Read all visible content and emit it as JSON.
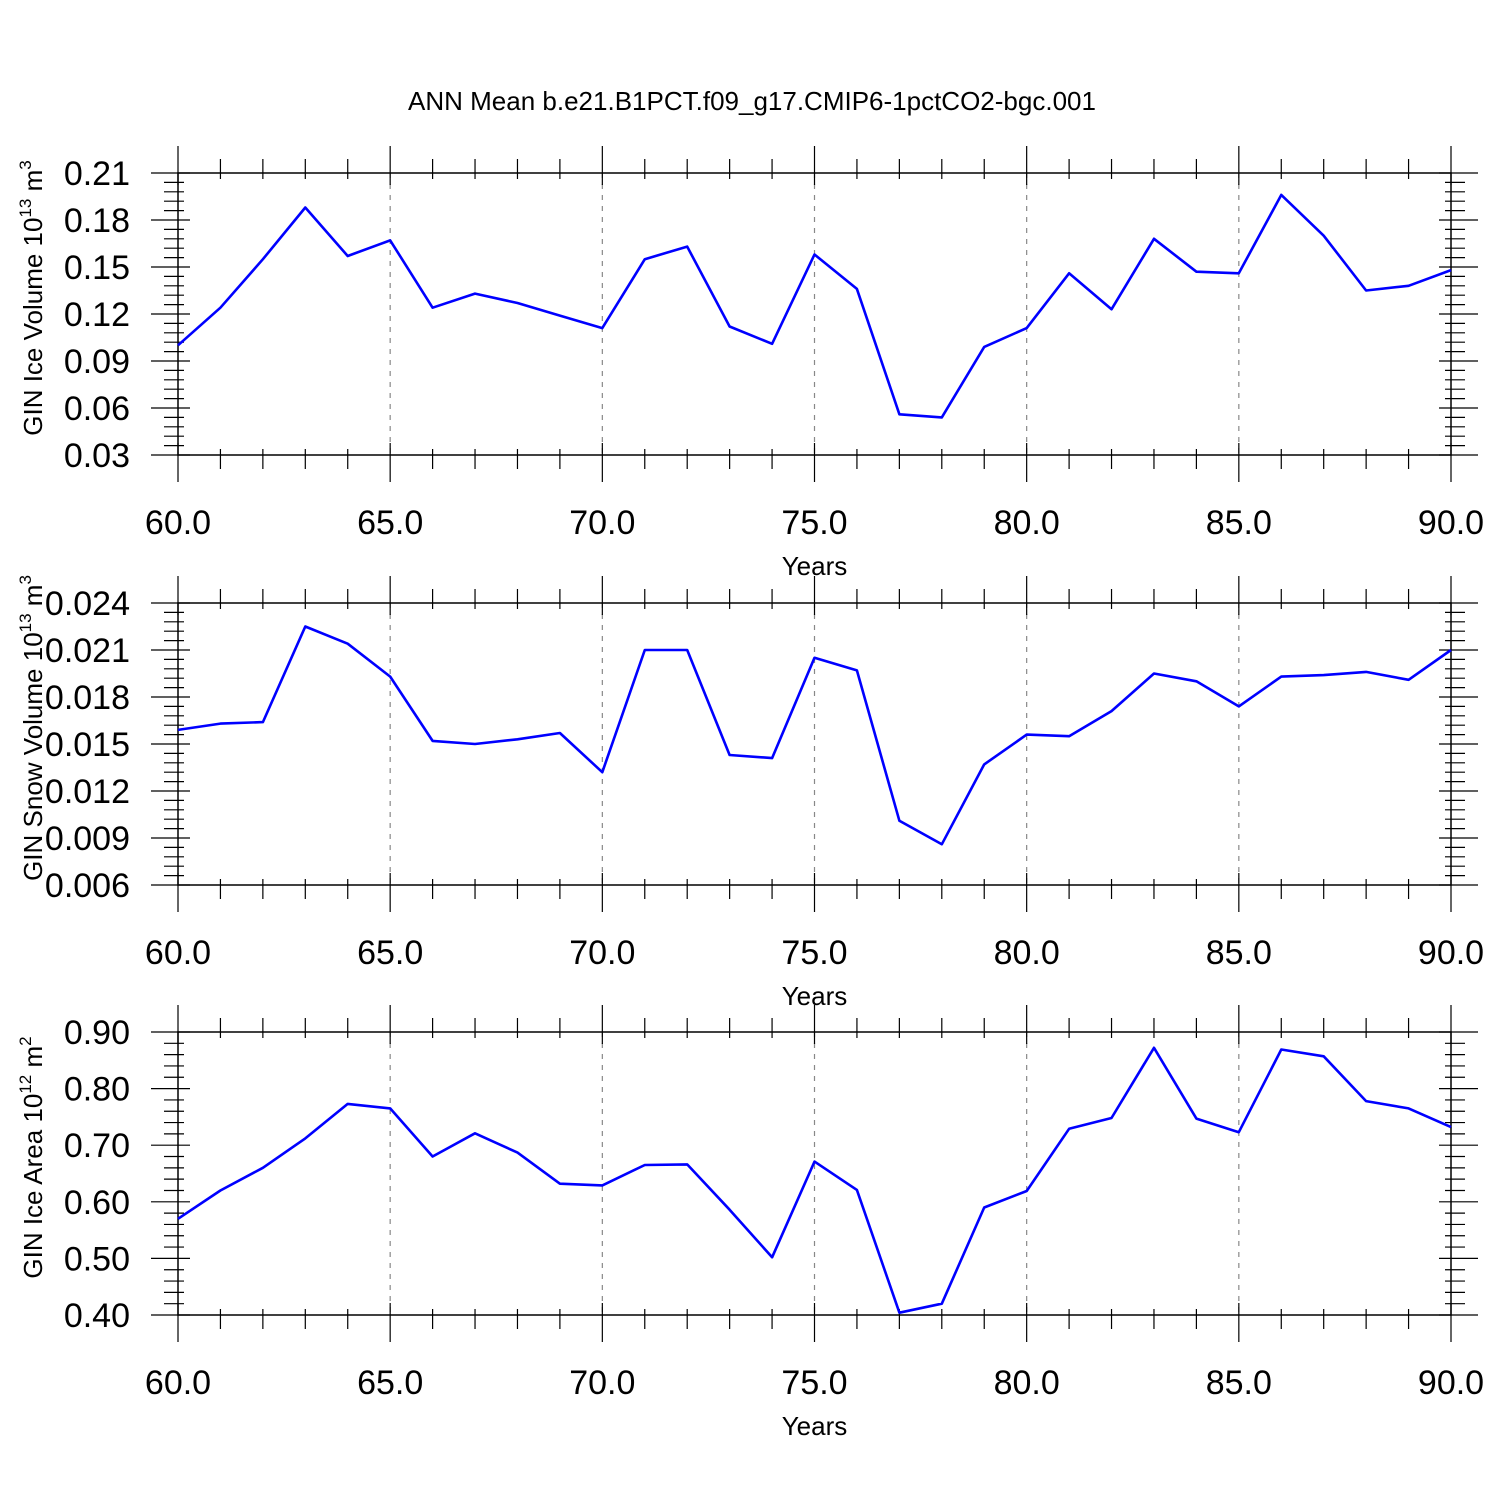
{
  "title": "ANN Mean b.e21.B1PCT.f09_g17.CMIP6-1pctCO2-bgc.001",
  "chart_data": [
    {
      "type": "line",
      "xlabel": "Years",
      "ylabel": "GIN Ice Volume 10",
      "ylabel_exp": "13",
      "ylabel_unit": " m",
      "ylabel_unit_exp": "3",
      "xlim": [
        60,
        90
      ],
      "ylim": [
        0.03,
        0.21
      ],
      "xticks": [
        60,
        65,
        70,
        75,
        80,
        85,
        90
      ],
      "xtick_labels": [
        "60.0",
        "65.0",
        "70.0",
        "75.0",
        "80.0",
        "85.0",
        "90.0"
      ],
      "yticks": [
        0.03,
        0.06,
        0.09,
        0.12,
        0.15,
        0.18,
        0.21
      ],
      "ytick_labels": [
        "0.03",
        "0.06",
        "0.09",
        "0.12",
        "0.15",
        "0.18",
        "0.21"
      ],
      "grid": "dashed vertical at major x ticks",
      "color": "#0000ff",
      "x": [
        60,
        61,
        62,
        63,
        64,
        65,
        66,
        67,
        68,
        69,
        70,
        71,
        72,
        73,
        74,
        75,
        76,
        77,
        78,
        79,
        80,
        81,
        82,
        83,
        84,
        85,
        86,
        87,
        88,
        89,
        90
      ],
      "values": [
        0.1,
        0.124,
        0.155,
        0.188,
        0.157,
        0.167,
        0.124,
        0.133,
        0.127,
        0.119,
        0.111,
        0.155,
        0.163,
        0.112,
        0.101,
        0.158,
        0.136,
        0.056,
        0.054,
        0.099,
        0.111,
        0.146,
        0.123,
        0.168,
        0.147,
        0.146,
        0.196,
        0.17,
        0.135,
        0.138,
        0.148
      ]
    },
    {
      "type": "line",
      "xlabel": "Years",
      "ylabel": "GIN Snow Volume 10",
      "ylabel_exp": "13",
      "ylabel_unit": " m",
      "ylabel_unit_exp": "3",
      "xlim": [
        60,
        90
      ],
      "ylim": [
        0.006,
        0.024
      ],
      "xticks": [
        60,
        65,
        70,
        75,
        80,
        85,
        90
      ],
      "xtick_labels": [
        "60.0",
        "65.0",
        "70.0",
        "75.0",
        "80.0",
        "85.0",
        "90.0"
      ],
      "yticks": [
        0.006,
        0.009,
        0.012,
        0.015,
        0.018,
        0.021,
        0.024
      ],
      "ytick_labels": [
        "0.006",
        "0.009",
        "0.012",
        "0.015",
        "0.018",
        "0.021",
        "0.024"
      ],
      "grid": "dashed vertical at major x ticks",
      "color": "#0000ff",
      "x": [
        60,
        61,
        62,
        63,
        64,
        65,
        66,
        67,
        68,
        69,
        70,
        71,
        72,
        73,
        74,
        75,
        76,
        77,
        78,
        79,
        80,
        81,
        82,
        83,
        84,
        85,
        86,
        87,
        88,
        89,
        90
      ],
      "values": [
        0.0159,
        0.0163,
        0.0164,
        0.0225,
        0.0214,
        0.0193,
        0.0152,
        0.015,
        0.0153,
        0.0157,
        0.0132,
        0.021,
        0.021,
        0.0143,
        0.0141,
        0.0205,
        0.0197,
        0.0101,
        0.0086,
        0.0137,
        0.0156,
        0.0155,
        0.0171,
        0.0195,
        0.019,
        0.0174,
        0.0193,
        0.0194,
        0.0196,
        0.0191,
        0.021
      ]
    },
    {
      "type": "line",
      "xlabel": "Years",
      "ylabel": "GIN Ice Area 10",
      "ylabel_exp": "12",
      "ylabel_unit": " m",
      "ylabel_unit_exp": "2",
      "xlim": [
        60,
        90
      ],
      "ylim": [
        0.4,
        0.9
      ],
      "xticks": [
        60,
        65,
        70,
        75,
        80,
        85,
        90
      ],
      "xtick_labels": [
        "60.0",
        "65.0",
        "70.0",
        "75.0",
        "80.0",
        "85.0",
        "90.0"
      ],
      "yticks": [
        0.4,
        0.5,
        0.6,
        0.7,
        0.8,
        0.9
      ],
      "ytick_labels": [
        "0.40",
        "0.50",
        "0.60",
        "0.70",
        "0.80",
        "0.90"
      ],
      "grid": "dashed vertical at major x ticks",
      "color": "#0000ff",
      "x": [
        60,
        61,
        62,
        63,
        64,
        65,
        66,
        67,
        68,
        69,
        70,
        71,
        72,
        73,
        74,
        75,
        76,
        77,
        78,
        79,
        80,
        81,
        82,
        83,
        84,
        85,
        86,
        87,
        88,
        89,
        90
      ],
      "values": [
        0.57,
        0.62,
        0.66,
        0.712,
        0.773,
        0.765,
        0.68,
        0.721,
        0.687,
        0.632,
        0.629,
        0.665,
        0.666,
        0.586,
        0.502,
        0.671,
        0.621,
        0.404,
        0.42,
        0.59,
        0.619,
        0.729,
        0.748,
        0.872,
        0.747,
        0.723,
        0.869,
        0.857,
        0.778,
        0.765,
        0.732
      ]
    }
  ]
}
